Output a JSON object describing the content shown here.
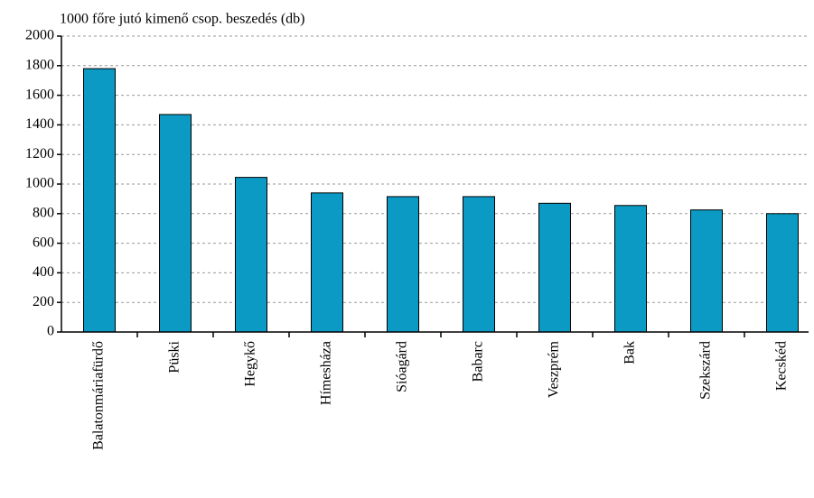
{
  "chart_data": {
    "type": "bar",
    "title": "1000 főre jutó kimenő csop. beszedés (db)",
    "categories": [
      "Balatonmáriafürdő",
      "Püski",
      "Hegykő",
      "Hímesháza",
      "Sióagárd",
      "Babarc",
      "Veszprém",
      "Bak",
      "Szekszárd",
      "Kecskéd"
    ],
    "values": [
      1780,
      1470,
      1045,
      940,
      915,
      915,
      870,
      855,
      825,
      800
    ],
    "color": "#0a9ac4",
    "ylim": [
      0,
      2000
    ],
    "yticks": [
      0,
      200,
      400,
      600,
      800,
      1000,
      1200,
      1400,
      1600,
      1800,
      2000
    ],
    "grid": true
  }
}
